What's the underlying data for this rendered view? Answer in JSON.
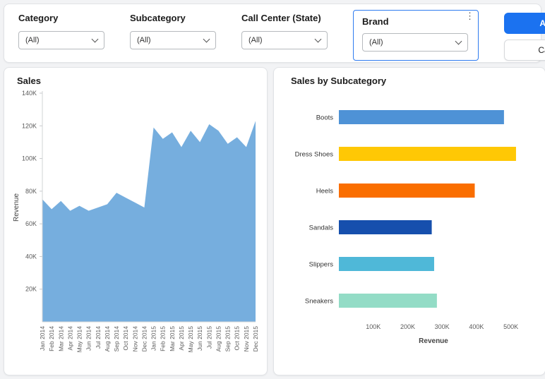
{
  "filters": {
    "items": [
      {
        "label": "Category",
        "value": "(All)"
      },
      {
        "label": "Subcategory",
        "value": "(All)"
      },
      {
        "label": "Call Center (State)",
        "value": "(All)"
      },
      {
        "label": "Brand",
        "value": "(All)",
        "selected": true
      }
    ],
    "apply_label": "Apply",
    "cancel_label": "Cancel",
    "kebab_icon": "⋮"
  },
  "colors": {
    "accent_blue": "#1b72f0",
    "selected_filter_border": "#2e7bf0",
    "area_fill": "#76aede"
  },
  "chart_data": [
    {
      "type": "area",
      "title": "Sales",
      "ylabel": "Revenue",
      "ylim": [
        0,
        140000
      ],
      "ytick_values": [
        20000,
        40000,
        60000,
        80000,
        100000,
        120000,
        140000
      ],
      "ytick_labels": [
        "20K",
        "40K",
        "60K",
        "80K",
        "100K",
        "120K",
        "140K"
      ],
      "x": [
        "Jan 2014",
        "Feb 2014",
        "Mar 2014",
        "Apr 2014",
        "May 2014",
        "Jun 2014",
        "Jul 2014",
        "Aug 2014",
        "Sep 2014",
        "Oct 2014",
        "Nov 2014",
        "Dec 2014",
        "Jan 2015",
        "Feb 2015",
        "Mar 2015",
        "Apr 2015",
        "May 2015",
        "Jun 2015",
        "Jul 2015",
        "Aug 2015",
        "Sep 2015",
        "Oct 2015",
        "Nov 2015",
        "Dec 2015"
      ],
      "values": [
        75000,
        69000,
        74000,
        68000,
        71000,
        68000,
        70000,
        72000,
        79000,
        76000,
        73000,
        70000,
        119000,
        112000,
        116000,
        107000,
        117000,
        110000,
        121000,
        117000,
        109000,
        113000,
        107000,
        123000
      ],
      "fill_color": "#76aede",
      "grid": false
    },
    {
      "type": "bar",
      "orientation": "horizontal",
      "title": "Sales by Subcategory",
      "xlabel": "Revenue",
      "xlim": [
        0,
        550000
      ],
      "xtick_values": [
        100000,
        200000,
        300000,
        400000,
        500000
      ],
      "xtick_labels": [
        "100K",
        "200K",
        "300K",
        "400K",
        "500K"
      ],
      "categories": [
        "Boots",
        "Dress Shoes",
        "Heels",
        "Sandals",
        "Slippers",
        "Sneakers"
      ],
      "values": [
        480000,
        515000,
        395000,
        270000,
        277000,
        285000
      ],
      "bar_colors": [
        "#4e92d6",
        "#ffc805",
        "#fa6e00",
        "#164fad",
        "#4fb8d8",
        "#93dcc6"
      ],
      "grid": false
    }
  ]
}
